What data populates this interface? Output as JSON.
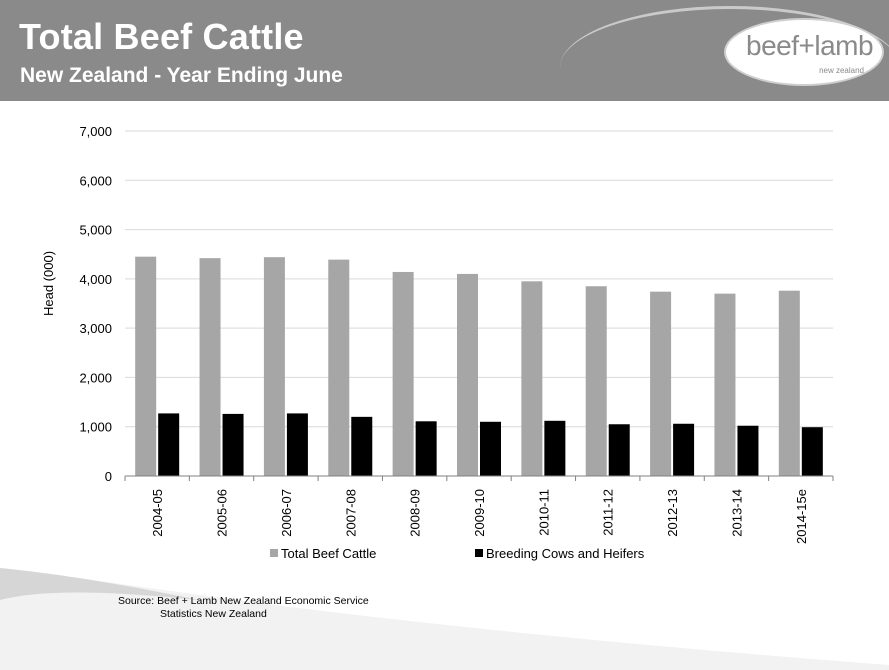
{
  "header": {
    "title": "Total Beef Cattle",
    "subtitle": "New Zealand - Year Ending June",
    "logo_text": "beef+lamb",
    "logo_sub": "new zealand"
  },
  "source": {
    "line1": "Source: Beef + Lamb New Zealand  Economic Service",
    "line2": "Statistics New Zealand"
  },
  "colors": {
    "header_bg": "#8a8a8a",
    "total_series": "#a6a6a6",
    "breeding_series": "#000000",
    "grid": "#d9d9d9"
  },
  "chart_data": {
    "type": "bar",
    "title": "",
    "xlabel": "",
    "ylabel": "Head (000)",
    "ylim": [
      0,
      7000
    ],
    "yticks": [
      0,
      1000,
      2000,
      3000,
      4000,
      5000,
      6000,
      7000
    ],
    "ytick_labels": [
      "0",
      "1,000",
      "2,000",
      "3,000",
      "4,000",
      "5,000",
      "6,000",
      "7,000"
    ],
    "grid": true,
    "legend": "bottom",
    "categories": [
      "2004-05",
      "2005-06",
      "2006-07",
      "2007-08",
      "2008-09",
      "2009-10",
      "2010-11",
      "2011-12",
      "2012-13",
      "2013-14",
      "2014-15e"
    ],
    "series": [
      {
        "name": "Total Beef Cattle",
        "color": "#a6a6a6",
        "values": [
          4450,
          4420,
          4440,
          4390,
          4140,
          4100,
          3950,
          3850,
          3740,
          3700,
          3760
        ]
      },
      {
        "name": "Breeding Cows and Heifers",
        "color": "#000000",
        "values": [
          1270,
          1260,
          1270,
          1200,
          1110,
          1100,
          1120,
          1050,
          1060,
          1020,
          990
        ]
      }
    ]
  }
}
